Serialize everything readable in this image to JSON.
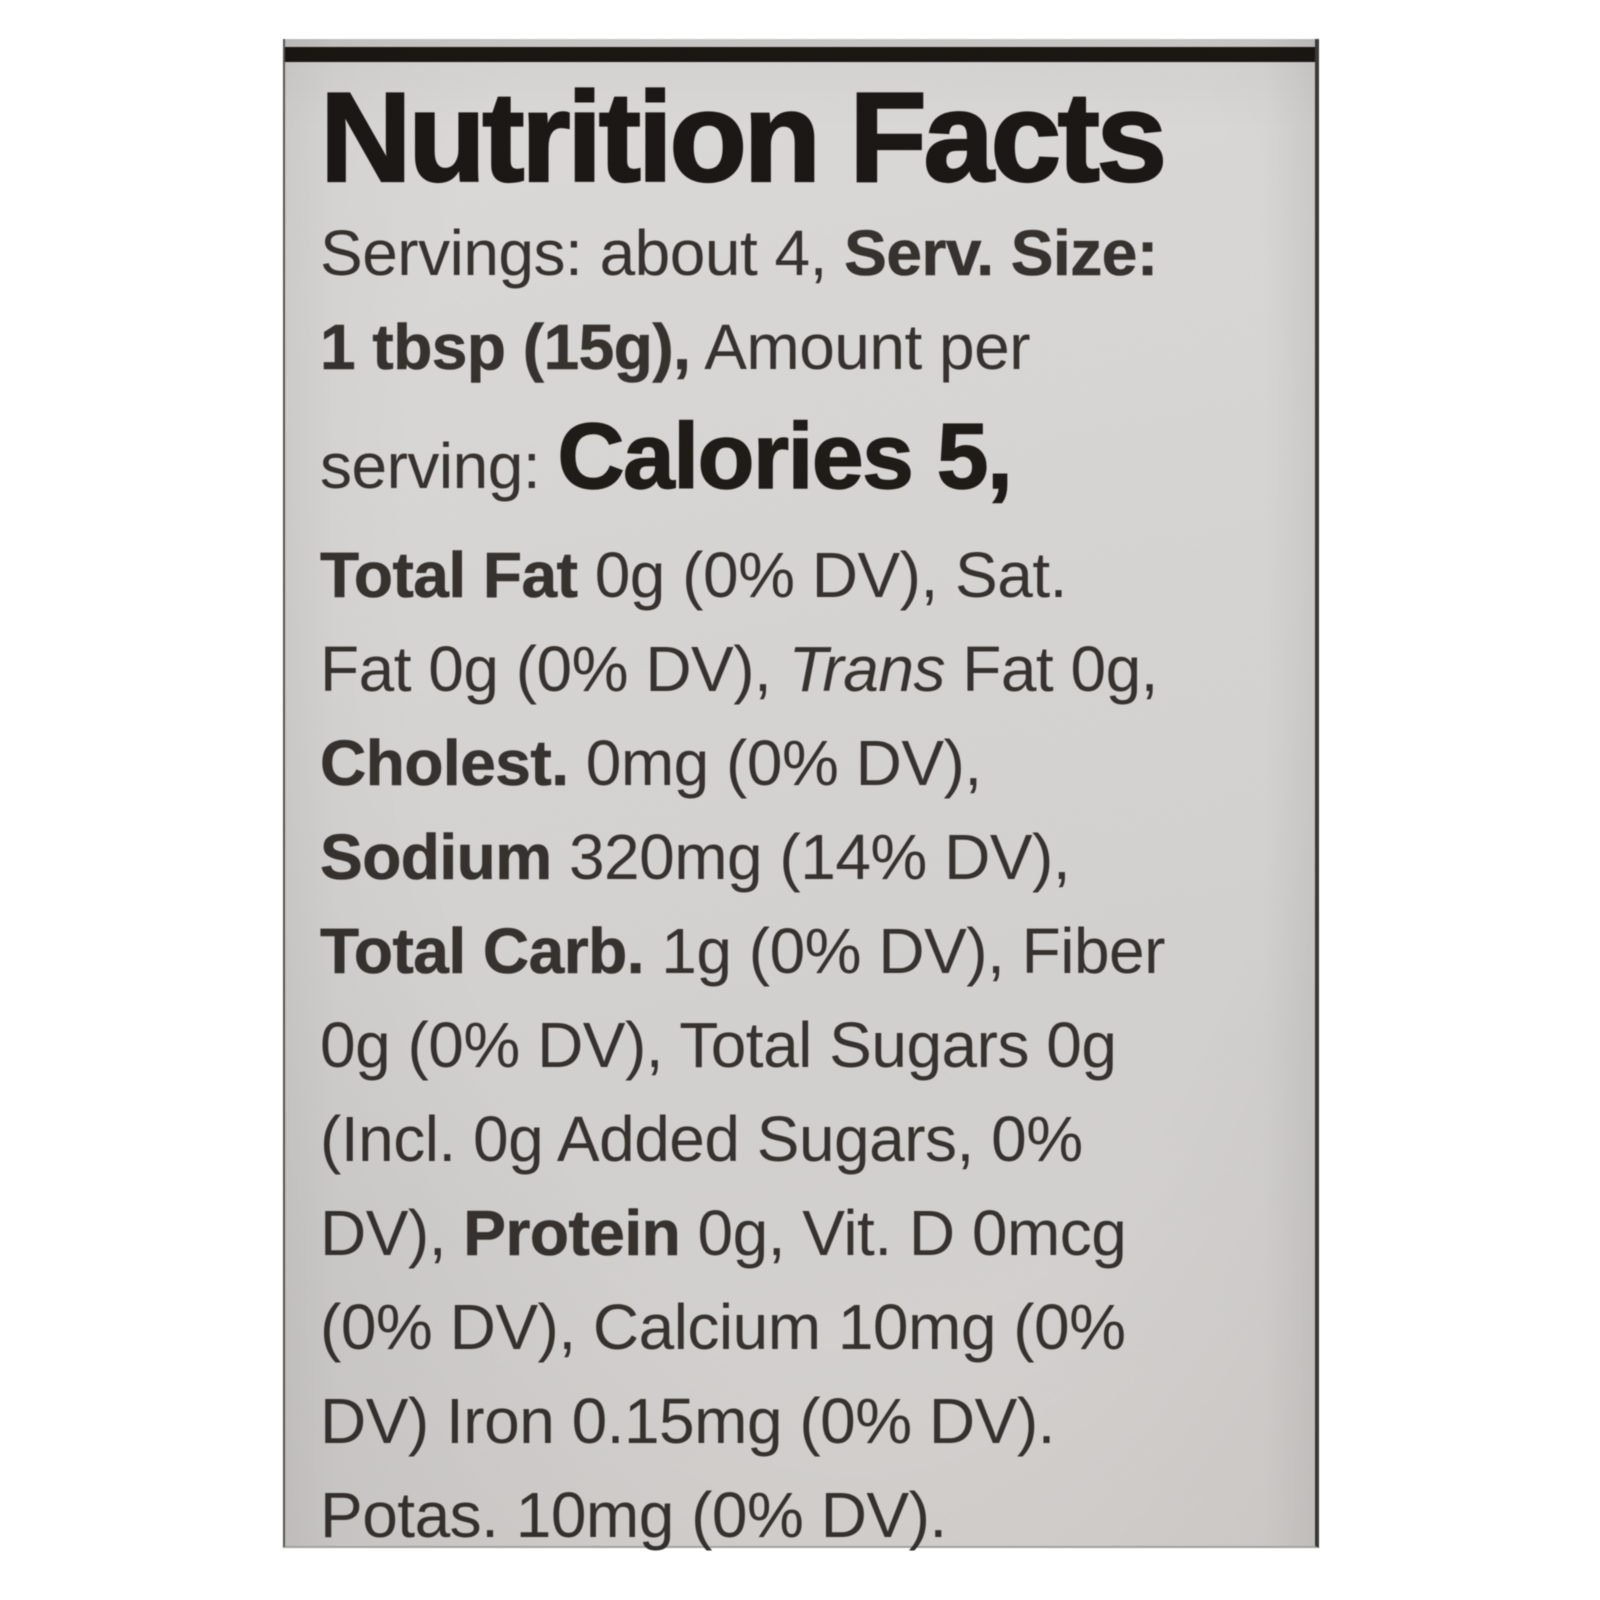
{
  "label": {
    "title": "Nutrition Facts",
    "lines": [
      {
        "segments": [
          {
            "text": "Servings: about 4, ",
            "style": "regular"
          },
          {
            "text": "Serv. Size:",
            "style": "bold"
          }
        ]
      },
      {
        "segments": [
          {
            "text": "1 tbsp (15g),",
            "style": "bold"
          },
          {
            "text": " Amount per",
            "style": "regular"
          }
        ]
      },
      {
        "calories_line": true,
        "segments": [
          {
            "text": "serving: ",
            "style": "regular"
          },
          {
            "text": "Calories 5,",
            "style": "calories"
          }
        ]
      },
      {
        "segments": [
          {
            "text": "Total Fat ",
            "style": "bold"
          },
          {
            "text": "0g (0% DV), Sat.",
            "style": "regular"
          }
        ]
      },
      {
        "segments": [
          {
            "text": "Fat 0g (0% DV), ",
            "style": "regular"
          },
          {
            "text": "Trans",
            "style": "italic"
          },
          {
            "text": " Fat 0g,",
            "style": "regular"
          }
        ]
      },
      {
        "segments": [
          {
            "text": "Cholest. ",
            "style": "bold"
          },
          {
            "text": "0mg (0% DV),",
            "style": "regular"
          }
        ]
      },
      {
        "segments": [
          {
            "text": "Sodium ",
            "style": "bold"
          },
          {
            "text": "320mg (14% DV),",
            "style": "regular"
          }
        ]
      },
      {
        "segments": [
          {
            "text": "Total Carb. ",
            "style": "bold"
          },
          {
            "text": "1g (0% DV), Fiber",
            "style": "regular"
          }
        ]
      },
      {
        "segments": [
          {
            "text": "0g (0% DV), Total Sugars 0g",
            "style": "regular"
          }
        ]
      },
      {
        "segments": [
          {
            "text": "(Incl. 0g Added Sugars, 0%",
            "style": "regular"
          }
        ]
      },
      {
        "segments": [
          {
            "text": "DV), ",
            "style": "regular"
          },
          {
            "text": "Protein ",
            "style": "bold"
          },
          {
            "text": "0g, Vit. D 0mcg",
            "style": "regular"
          }
        ]
      },
      {
        "segments": [
          {
            "text": "(0% DV), Calcium 10mg (0%",
            "style": "regular"
          }
        ]
      },
      {
        "segments": [
          {
            "text": "DV) Iron 0.15mg (0% DV).",
            "style": "regular"
          }
        ]
      },
      {
        "segments": [
          {
            "text": "Potas. 10mg (0% DV).",
            "style": "regular"
          }
        ]
      }
    ],
    "nutrition_summary": {
      "servings": "about 4",
      "serving_size": "1 tbsp (15g)",
      "calories": "5",
      "total_fat": "0g (0% DV)",
      "saturated_fat": "0g (0% DV)",
      "trans_fat": "0g",
      "cholesterol": "0mg (0% DV)",
      "sodium": "320mg (14% DV)",
      "total_carbohydrate": "1g (0% DV)",
      "fiber": "0g (0% DV)",
      "total_sugars": "0g",
      "added_sugars": "0g (0% DV)",
      "protein": "0g",
      "vitamin_d": "0mcg (0% DV)",
      "calcium": "10mg (0% DV)",
      "iron": "0.15mg (0% DV)",
      "potassium": "10mg (0% DV)"
    },
    "colors": {
      "photo_background": "#ffffff",
      "label_background": "#d6d4d2",
      "top_strip": "#17130f",
      "title_text": "#171310",
      "body_text": "#332e2a"
    }
  }
}
